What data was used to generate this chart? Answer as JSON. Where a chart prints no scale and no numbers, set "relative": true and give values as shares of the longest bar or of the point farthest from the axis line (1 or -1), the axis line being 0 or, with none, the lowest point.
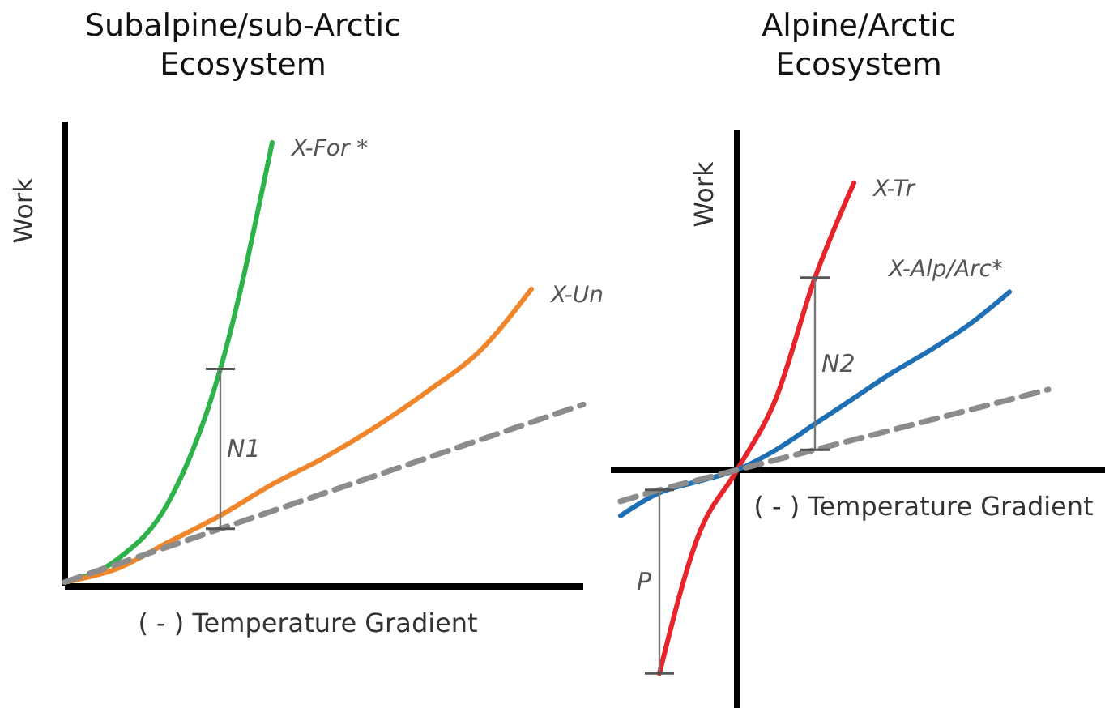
{
  "chart_data": [
    {
      "type": "line",
      "title": "Subalpine/sub-Arctic Ecosystem",
      "xlabel": "( - ) Temperature Gradient",
      "ylabel": "Work",
      "relative": true,
      "marker": "none",
      "categories": [
        null,
        null,
        null,
        null,
        null,
        null,
        null,
        null,
        null,
        null,
        null
      ],
      "series": [
        {
          "name": "X-For *",
          "color": "#2db34a",
          "values": [
            0.01,
            0.06,
            0.19,
            0.49,
            1.0,
            null,
            null,
            null,
            null,
            null,
            null
          ]
        },
        {
          "name": "X-Un",
          "color": "#f0862b",
          "values": [
            0.01,
            0.04,
            0.1,
            0.16,
            0.23,
            0.29,
            0.36,
            0.44,
            0.53,
            0.67,
            null
          ]
        },
        {
          "color": "#8c8c8c",
          "line_style": "dashed",
          "values": [
            0.01,
            0.05,
            0.09,
            0.13,
            0.17,
            0.21,
            0.25,
            0.29,
            0.33,
            0.37,
            0.41
          ]
        }
      ],
      "annotations": [
        "N1"
      ]
    },
    {
      "type": "line",
      "title": "Alpine/Arctic Ecosystem",
      "xlabel": "( - ) Temperature Gradient",
      "ylabel": "Work",
      "relative": true,
      "marker": "none",
      "categories": [
        null,
        null,
        null,
        null,
        null,
        null,
        null,
        null,
        null,
        null,
        null,
        null
      ],
      "series": [
        {
          "name": "X-Tr",
          "color": "#e8242b",
          "values": [
            null,
            -0.71,
            -0.23,
            0,
            0.25,
            0.67,
            1.0,
            null,
            null,
            null,
            null,
            null
          ]
        },
        {
          "name": "X-Alp/Arc*",
          "color": "#1f6fb5",
          "values": [
            -0.16,
            -0.08,
            -0.04,
            0,
            0.07,
            0.16,
            0.25,
            0.34,
            0.42,
            0.51,
            0.62,
            null
          ]
        },
        {
          "color": "#8c8c8c",
          "line_style": "dashed",
          "values": [
            -0.11,
            -0.07,
            -0.035,
            0,
            0.035,
            0.07,
            0.105,
            0.14,
            0.175,
            0.21,
            0.245,
            0.28
          ]
        }
      ],
      "annotations": [
        "N2",
        "P"
      ]
    }
  ]
}
